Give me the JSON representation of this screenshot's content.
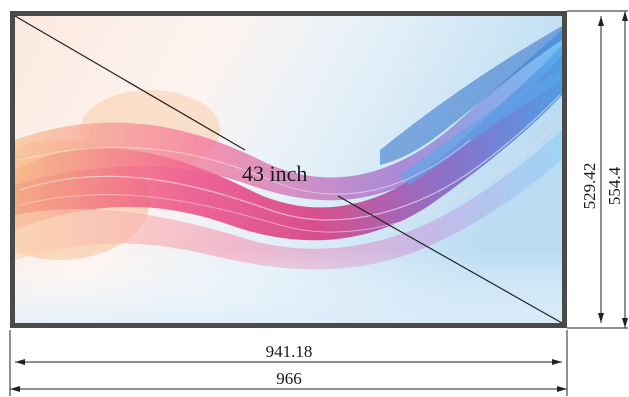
{
  "diagonal_label": "43 inch",
  "dimensions": {
    "active_width": "941.18",
    "overall_width": "966",
    "active_height": "529.42",
    "overall_height": "554.4"
  },
  "colors": {
    "bezel": "#4a4a4a",
    "dimension_line": "#222222"
  }
}
